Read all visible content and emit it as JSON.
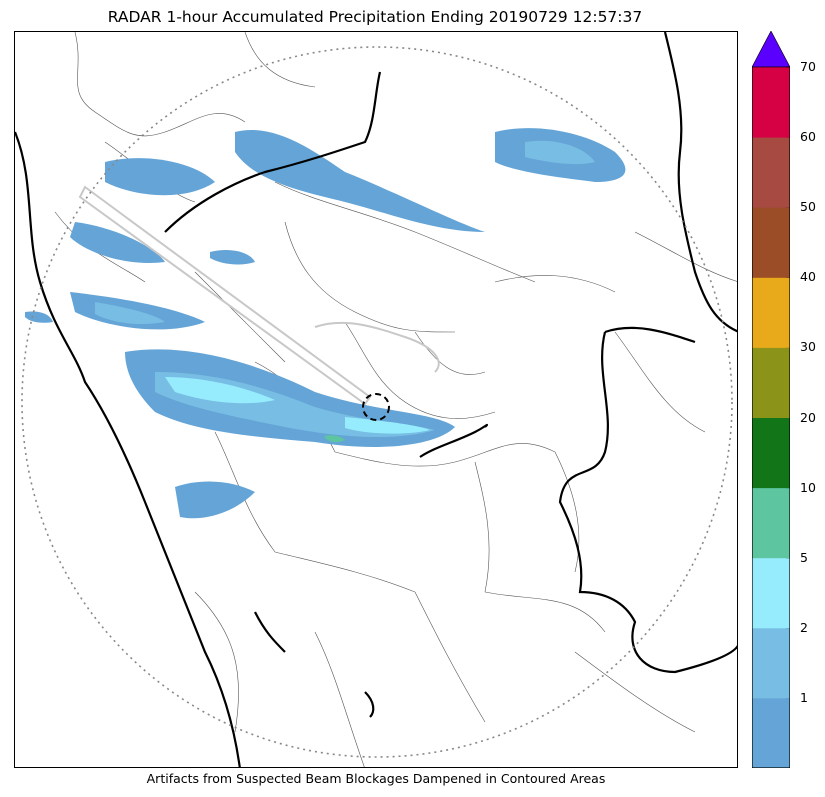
{
  "title": "RADAR 1-hour Accumulated Precipitation Ending 20190729 12:57:37",
  "caption": "Artifacts from Suspected Beam Blockages Dampened in Contoured Areas",
  "colorbar": {
    "extend": "max",
    "levels": [
      {
        "label": "1",
        "color": "#64a4d6"
      },
      {
        "label": "2",
        "color": "#78bde3"
      },
      {
        "label": "5",
        "color": "#96ecfd"
      },
      {
        "label": "10",
        "color": "#5dc59f"
      },
      {
        "label": "20",
        "color": "#127618"
      },
      {
        "label": "30",
        "color": "#8b9418"
      },
      {
        "label": "40",
        "color": "#e8a91b"
      },
      {
        "label": "50",
        "color": "#9a4d27"
      },
      {
        "label": "60",
        "color": "#a64a42"
      },
      {
        "label": "70",
        "color": "#d60045"
      }
    ],
    "extend_color": "#5a00ff"
  }
}
